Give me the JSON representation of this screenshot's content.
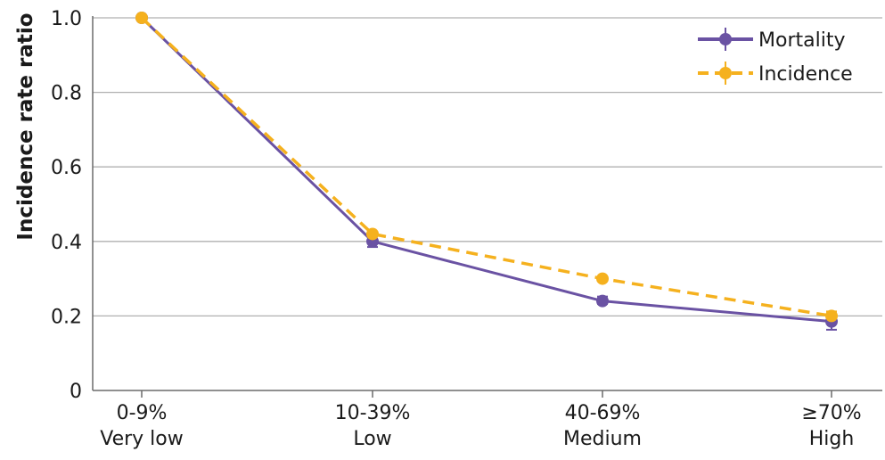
{
  "chart_data": {
    "type": "line",
    "ylabel": "Incidence rate ratio",
    "xlabel": "",
    "ylim": [
      0,
      1.0
    ],
    "yticks": [
      0,
      0.2,
      0.4,
      0.6,
      0.8,
      1.0
    ],
    "ytick_labels": [
      "0",
      "0.2",
      "0.4",
      "0.6",
      "0.8",
      "1.0"
    ],
    "categories": [
      {
        "top": "0-9%",
        "bottom": "Very low"
      },
      {
        "top": "10-39%",
        "bottom": "Low"
      },
      {
        "top": "40-69%",
        "bottom": "Medium"
      },
      {
        "top": "≥70%",
        "bottom": "High"
      }
    ],
    "grid": true,
    "legend_position": "top-right",
    "series": [
      {
        "name": "Mortality",
        "color": "#6a52a3",
        "style": "solid",
        "values": [
          1.0,
          0.4,
          0.24,
          0.185
        ],
        "err_low": [
          1.0,
          0.385,
          0.232,
          0.163
        ],
        "err_high": [
          1.0,
          0.42,
          0.252,
          0.207
        ]
      },
      {
        "name": "Incidence",
        "color": "#f5b11e",
        "style": "dashed",
        "values": [
          1.0,
          0.42,
          0.3,
          0.2
        ],
        "err_low": [
          1.0,
          0.415,
          0.298,
          0.195
        ],
        "err_high": [
          1.0,
          0.425,
          0.303,
          0.212
        ]
      }
    ]
  }
}
